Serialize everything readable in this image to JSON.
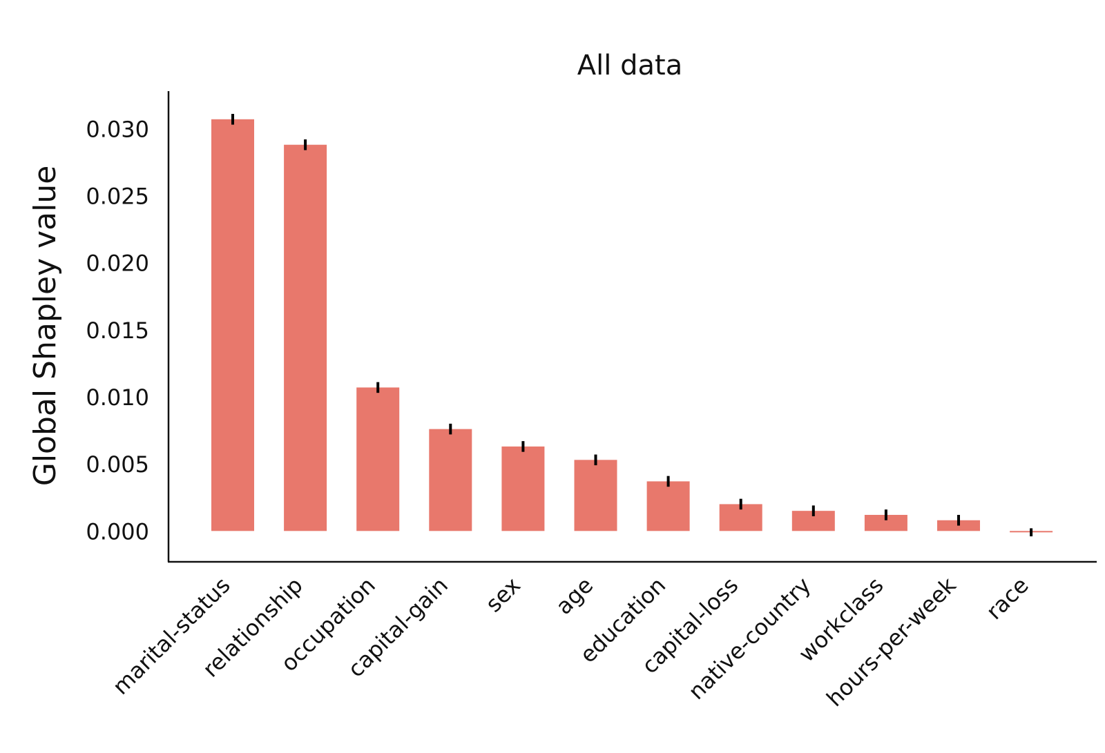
{
  "chart_data": {
    "type": "bar",
    "title": "All data",
    "xlabel": "",
    "ylabel": "Global Shapley value",
    "categories": [
      "marital-status",
      "relationship",
      "occupation",
      "capital-gain",
      "sex",
      "age",
      "education",
      "capital-loss",
      "native-country",
      "workclass",
      "hours-per-week",
      "race"
    ],
    "values": [
      0.0307,
      0.0288,
      0.0107,
      0.0076,
      0.0063,
      0.0053,
      0.0037,
      0.002,
      0.0015,
      0.0012,
      0.0008,
      -0.0001
    ],
    "errors": [
      0.0004,
      0.0004,
      0.0004,
      0.0004,
      0.0004,
      0.0004,
      0.0004,
      0.0004,
      0.0004,
      0.0004,
      0.0004,
      0.0003
    ],
    "yticks": [
      "0.000",
      "0.005",
      "0.010",
      "0.015",
      "0.020",
      "0.025",
      "0.030"
    ],
    "ylim": [
      -0.0023,
      0.0328
    ],
    "grid": false,
    "bar_color": "#e8786c",
    "error_color": "#000000"
  }
}
